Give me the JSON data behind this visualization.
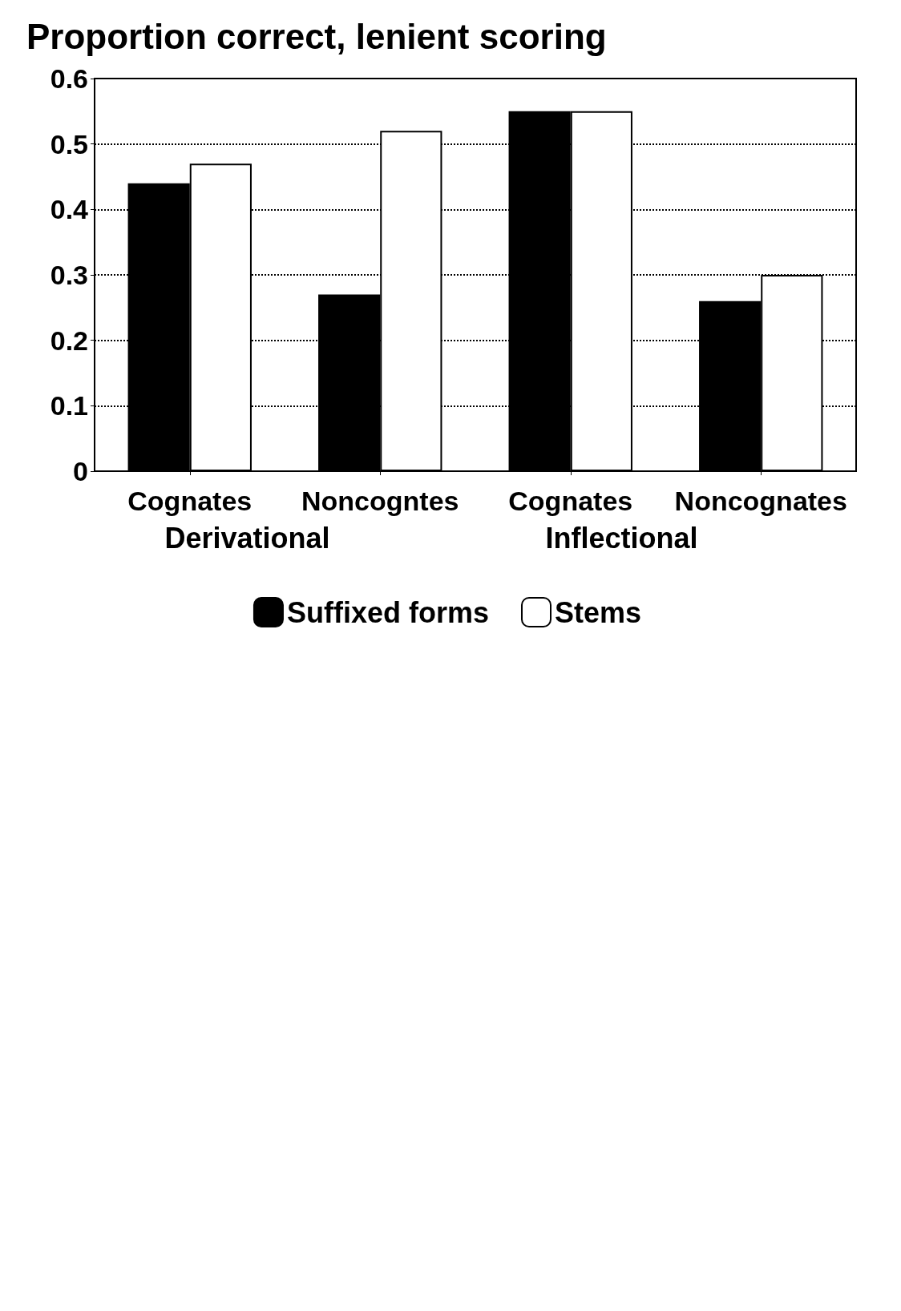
{
  "chart_data": {
    "type": "bar",
    "title": "Proportion correct, lenient scoring",
    "categories": [
      "Cognates",
      "Noncogntes",
      "Cognates",
      "Noncognates"
    ],
    "series": [
      {
        "name": "Suffixed forms",
        "color": "#000000",
        "values": [
          0.44,
          0.27,
          0.55,
          0.26
        ]
      },
      {
        "name": "Stems",
        "color": "#ffffff",
        "values": [
          0.47,
          0.52,
          0.55,
          0.3
        ]
      }
    ],
    "ylim": [
      0,
      0.6
    ],
    "yticks": [
      0,
      0.1,
      0.2,
      0.3,
      0.4,
      0.5,
      0.6
    ],
    "grid": "y",
    "legend": "bottom",
    "annotations": [
      "Derivational",
      "Inflectional"
    ]
  }
}
